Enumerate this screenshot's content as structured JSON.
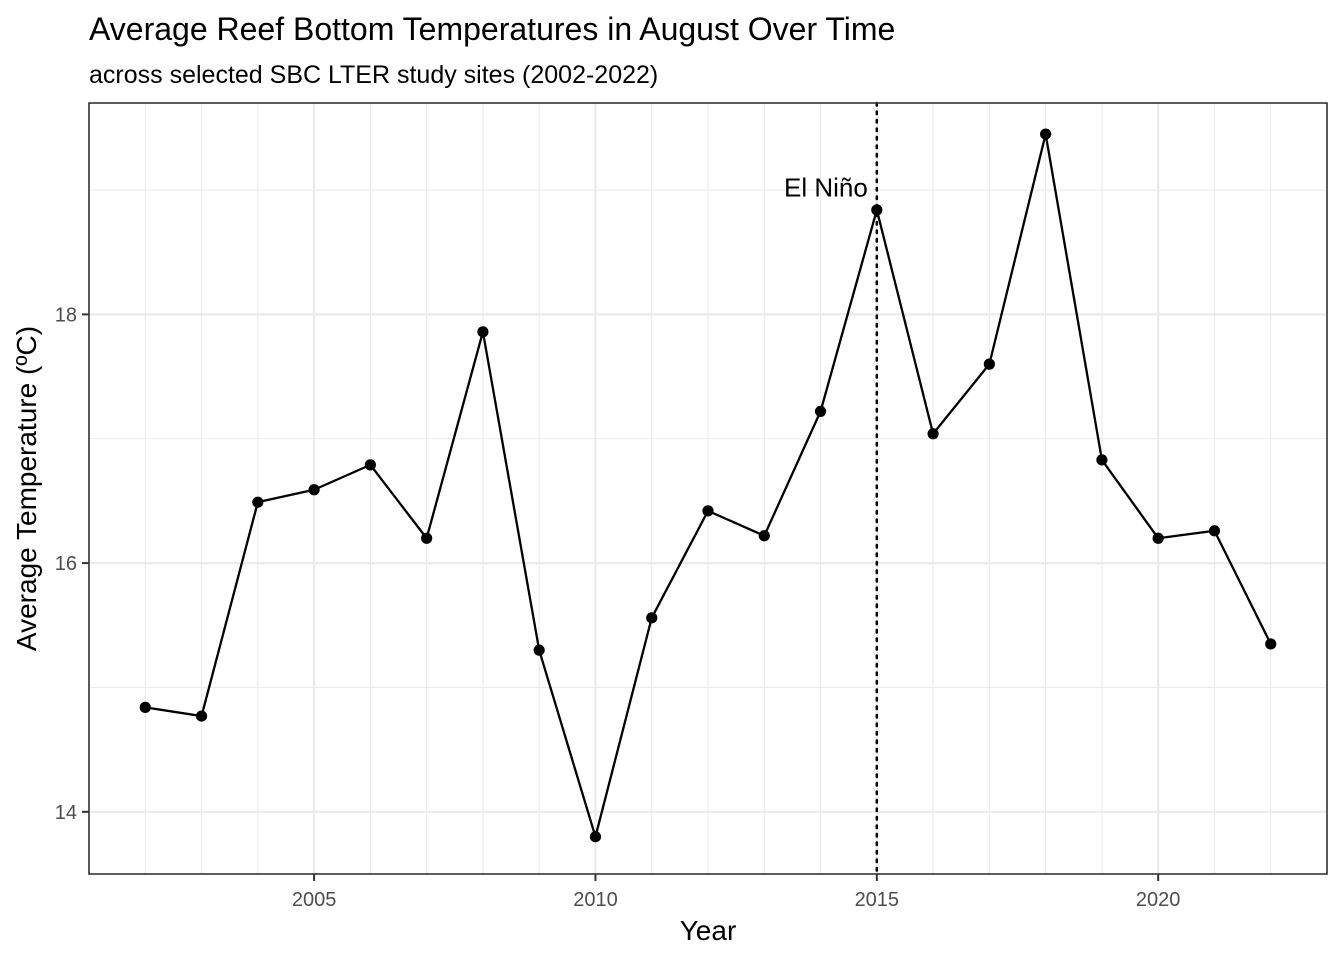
{
  "chart_data": {
    "type": "line",
    "title": "Average Reef Bottom Temperatures in August Over Time",
    "subtitle": "across selected SBC LTER study sites (2002-2022)",
    "xlabel": "Year",
    "ylabel": "Average Temperature (ºC)",
    "xlim": [
      2001,
      2023
    ],
    "ylim": [
      13.5,
      19.7
    ],
    "x_ticks": [
      2005,
      2010,
      2015,
      2020
    ],
    "y_ticks": [
      14,
      16,
      18
    ],
    "grid": true,
    "legend": "none",
    "series": [
      {
        "x": [
          2002,
          2003,
          2004,
          2005,
          2006,
          2007,
          2008,
          2009,
          2010,
          2011,
          2012,
          2013,
          2014,
          2015,
          2016,
          2017,
          2018,
          2019,
          2020,
          2021,
          2022
        ],
        "y": [
          14.84,
          14.77,
          16.49,
          16.59,
          16.79,
          16.2,
          17.86,
          15.3,
          13.8,
          15.56,
          16.42,
          16.22,
          17.22,
          18.84,
          17.04,
          17.6,
          19.45,
          16.83,
          16.2,
          16.26,
          15.35
        ]
      }
    ],
    "annotations": [
      {
        "type": "vline",
        "x": 2015,
        "style": "dotted"
      },
      {
        "type": "text",
        "x": 2015,
        "y": 18.95,
        "text": "El Niño"
      }
    ],
    "colors": {
      "line": "#000000",
      "points": "#000000"
    }
  }
}
